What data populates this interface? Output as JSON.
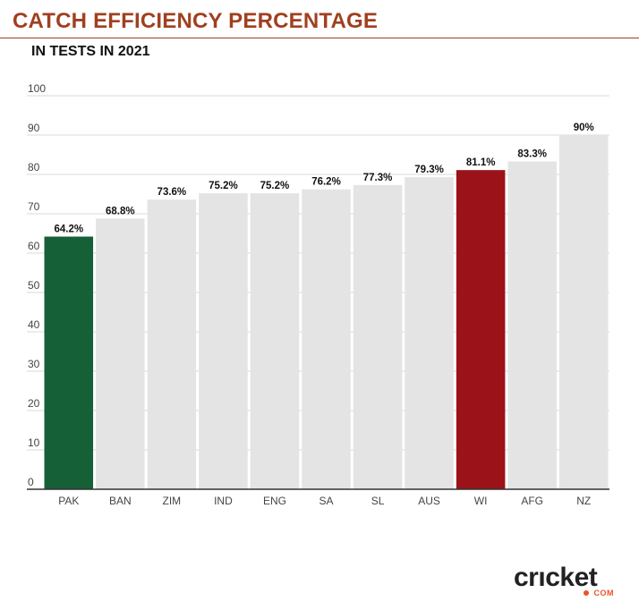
{
  "header": {
    "title": "CATCH EFFICIENCY PERCENTAGE",
    "subtitle": "IN TESTS IN 2021"
  },
  "brand": {
    "name": "crıcket",
    "suffix": "COM"
  },
  "colors": {
    "title": "#a0401f",
    "bar_default": "#e4e4e4",
    "bar_highlight_pak": "#156036",
    "bar_highlight_wi": "#9b1318",
    "gridline": "#d9d9d9",
    "axis": "#333333",
    "brand_accent": "#e8542a"
  },
  "chart_data": {
    "type": "bar",
    "title": "CATCH EFFICIENCY PERCENTAGE",
    "subtitle": "IN TESTS IN 2021",
    "xlabel": "",
    "ylabel": "",
    "categories": [
      "PAK",
      "BAN",
      "ZIM",
      "IND",
      "ENG",
      "SA",
      "SL",
      "AUS",
      "WI",
      "AFG",
      "NZ"
    ],
    "values": [
      64.2,
      68.8,
      73.6,
      75.2,
      75.2,
      76.2,
      77.3,
      79.3,
      81.1,
      83.3,
      90
    ],
    "data_labels": [
      "64.2%",
      "68.8%",
      "73.6%",
      "75.2%",
      "75.2%",
      "76.2%",
      "77.3%",
      "79.3%",
      "81.1%",
      "83.3%",
      "90%"
    ],
    "bar_colors": [
      "#156036",
      "#e4e4e4",
      "#e4e4e4",
      "#e4e4e4",
      "#e4e4e4",
      "#e4e4e4",
      "#e4e4e4",
      "#e4e4e4",
      "#9b1318",
      "#e4e4e4",
      "#e4e4e4"
    ],
    "ylim": [
      0,
      100
    ],
    "yticks": [
      0,
      10,
      20,
      30,
      40,
      50,
      60,
      70,
      80,
      90,
      100
    ],
    "grid": true,
    "legend": "none"
  }
}
